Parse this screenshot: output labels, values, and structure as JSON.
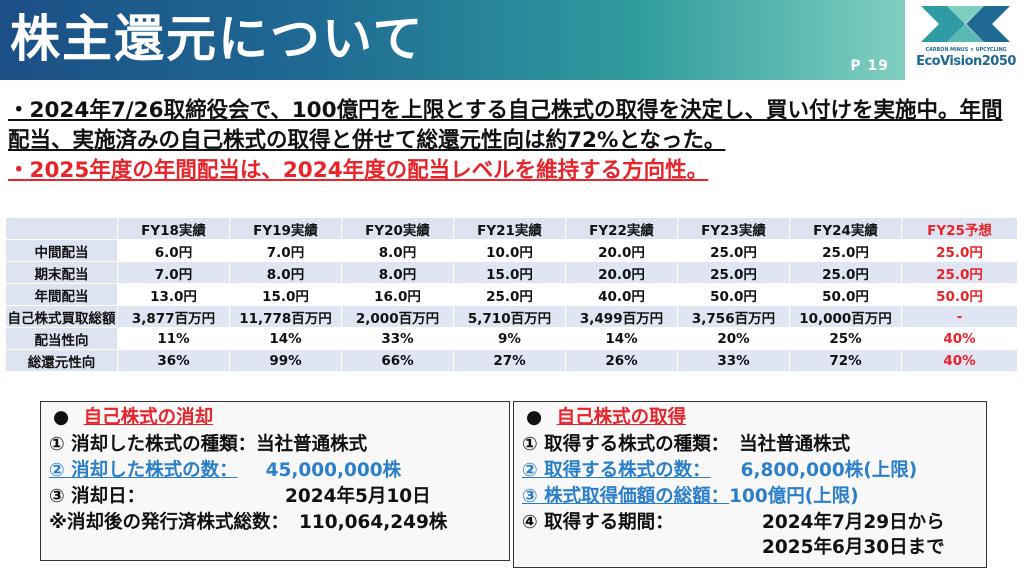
{
  "header": {
    "title": "株主還元について",
    "page_number": "P 19",
    "logo": {
      "sub": "CARBON MINUS × UPCYCLING",
      "main": "EcoVision2050"
    }
  },
  "bullets": [
    "・2024年7/26取締役会で、100億円を上限とする自己株式の取得を決定し、買い付けを実施中。年間配当、実施済みの自己株式の取得と併せて総還元性向は約72%となった。",
    "・2025年度の年間配当は、2024年度の配当レベルを維持する方向性。"
  ],
  "table": {
    "columns": [
      "",
      "FY18実績",
      "FY19実績",
      "FY20実績",
      "FY21実績",
      "FY22実績",
      "FY23実績",
      "FY24実績",
      "FY25予想"
    ],
    "rows": [
      {
        "label": "中間配当",
        "values": [
          "6.0円",
          "7.0円",
          "8.0円",
          "10.0円",
          "20.0円",
          "25.0円",
          "25.0円",
          "25.0円"
        ]
      },
      {
        "label": "期末配当",
        "values": [
          "7.0円",
          "8.0円",
          "8.0円",
          "15.0円",
          "20.0円",
          "25.0円",
          "25.0円",
          "25.0円"
        ]
      },
      {
        "label": "年間配当",
        "values": [
          "13.0円",
          "15.0円",
          "16.0円",
          "25.0円",
          "40.0円",
          "50.0円",
          "50.0円",
          "50.0円"
        ]
      },
      {
        "label": "自己株式買取総額",
        "values": [
          "3,877百万円",
          "11,778百万円",
          "2,000百万円",
          "5,710百万円",
          "3,499百万円",
          "3,756百万円",
          "10,000百万円",
          "-"
        ]
      },
      {
        "label": "配当性向",
        "values": [
          "11%",
          "14%",
          "33%",
          "9%",
          "14%",
          "20%",
          "25%",
          "40%"
        ]
      },
      {
        "label": "総還元性向",
        "values": [
          "36%",
          "99%",
          "66%",
          "27%",
          "26%",
          "33%",
          "72%",
          "40%"
        ]
      }
    ]
  },
  "cancel_box": {
    "title": "自己株式の消却",
    "l1_label": "① 消却した株式の種類：",
    "l1_value": "当社普通株式",
    "l2_label": "② 消却した株式の数：",
    "l2_value": "45,000,000株",
    "l3_label": "③ 消却日：",
    "l3_value": "2024年5月10日",
    "l4_label": "※消却後の発行済株式総数：",
    "l4_value": "110,064,249株"
  },
  "acquire_box": {
    "title": "自己株式の取得",
    "l1_label": "① 取得する株式の種類：",
    "l1_value": "当社普通株式",
    "l2_label": "② 取得する株式の数：",
    "l2_value": "6,800,000株(上限)",
    "l3_label": "③ 株式取得価額の総額：",
    "l3_value": "100億円(上限)",
    "l4_label": "④ 取得する期間：",
    "l4_value1": "2024年7月29日から",
    "l4_value2": "2025年6月30日まで"
  },
  "colors": {
    "accent_red": "#e8232a",
    "accent_blue": "#2b7fc8",
    "header_start": "#1b4f86",
    "header_end": "#7fcfc0"
  }
}
